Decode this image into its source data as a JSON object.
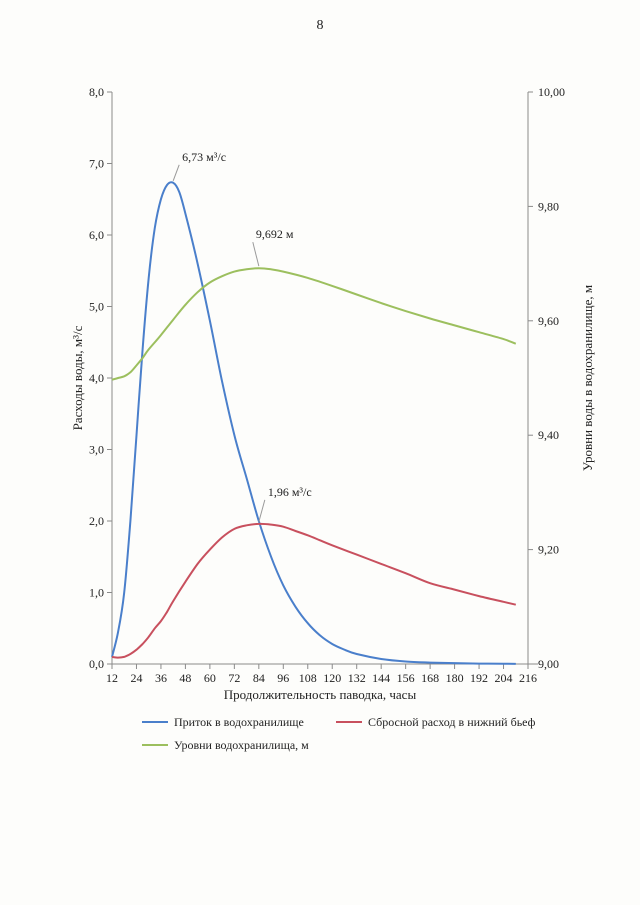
{
  "page": {
    "number": "8"
  },
  "chart_data": {
    "type": "line",
    "title": "",
    "xlabel": "Продолжительность паводка, часы",
    "ylabel_left": "Расходы воды, м³/с",
    "ylabel_right": "Уровни воды в водохранилище, м",
    "xlim": [
      12,
      216
    ],
    "xticks": [
      12,
      24,
      36,
      48,
      60,
      72,
      84,
      96,
      108,
      120,
      132,
      144,
      156,
      168,
      180,
      192,
      204,
      216
    ],
    "ylim_left": [
      0,
      8
    ],
    "yticks_left": [
      "0,0",
      "1,0",
      "2,0",
      "3,0",
      "4,0",
      "5,0",
      "6,0",
      "7,0",
      "8,0"
    ],
    "ylim_right": [
      9.0,
      10.0
    ],
    "yticks_right": [
      "9,00",
      "9,20",
      "9,40",
      "9,60",
      "9,80",
      "10,00"
    ],
    "grid": false,
    "legend_position": "bottom",
    "series": [
      {
        "name": "Приток в водохранилище",
        "axis": "left",
        "color": "#4a7fcb",
        "x": [
          12,
          15,
          18,
          21,
          24,
          27,
          30,
          33,
          36,
          39,
          42,
          45,
          48,
          54,
          60,
          66,
          72,
          78,
          84,
          90,
          96,
          102,
          108,
          114,
          120,
          126,
          132,
          144,
          156,
          168,
          180,
          192,
          204,
          210
        ],
        "values": [
          0.1,
          0.45,
          1.0,
          2.0,
          3.2,
          4.4,
          5.4,
          6.1,
          6.5,
          6.7,
          6.73,
          6.6,
          6.3,
          5.6,
          4.8,
          3.95,
          3.2,
          2.6,
          2.0,
          1.5,
          1.1,
          0.8,
          0.57,
          0.4,
          0.28,
          0.2,
          0.14,
          0.07,
          0.035,
          0.02,
          0.012,
          0.006,
          0.003,
          0.002
        ]
      },
      {
        "name": "Сбросной расход в нижний бьеф",
        "axis": "left",
        "color": "#c8505e",
        "x": [
          12,
          15,
          18,
          21,
          24,
          27,
          30,
          33,
          36,
          39,
          42,
          48,
          54,
          60,
          66,
          72,
          78,
          84,
          90,
          96,
          102,
          108,
          114,
          120,
          132,
          144,
          156,
          168,
          180,
          192,
          204,
          210
        ],
        "values": [
          0.1,
          0.09,
          0.1,
          0.14,
          0.2,
          0.28,
          0.38,
          0.5,
          0.6,
          0.73,
          0.88,
          1.15,
          1.4,
          1.6,
          1.77,
          1.89,
          1.94,
          1.96,
          1.95,
          1.92,
          1.86,
          1.8,
          1.73,
          1.66,
          1.53,
          1.4,
          1.27,
          1.13,
          1.04,
          0.95,
          0.87,
          0.83
        ]
      },
      {
        "name": "Уровни водохранилища, м",
        "axis": "right",
        "color": "#9cbf5e",
        "x": [
          12,
          15,
          18,
          21,
          24,
          27,
          30,
          36,
          42,
          48,
          54,
          60,
          66,
          72,
          78,
          84,
          90,
          96,
          108,
          120,
          132,
          144,
          156,
          168,
          180,
          192,
          204,
          210
        ],
        "values": [
          9.497,
          9.5,
          9.503,
          9.51,
          9.522,
          9.535,
          9.55,
          9.575,
          9.602,
          9.628,
          9.65,
          9.667,
          9.678,
          9.686,
          9.69,
          9.692,
          9.69,
          9.686,
          9.675,
          9.661,
          9.646,
          9.631,
          9.617,
          9.604,
          9.592,
          9.58,
          9.568,
          9.56
        ]
      }
    ],
    "annotations": [
      {
        "label": "6,73 м³/с",
        "x": 42,
        "y": 6.73,
        "axis": "left"
      },
      {
        "label": "9,692 м",
        "x": 84,
        "y": 9.692,
        "axis": "right"
      },
      {
        "label": "1,96 м³/с",
        "x": 84,
        "y": 1.96,
        "axis": "left"
      }
    ]
  }
}
